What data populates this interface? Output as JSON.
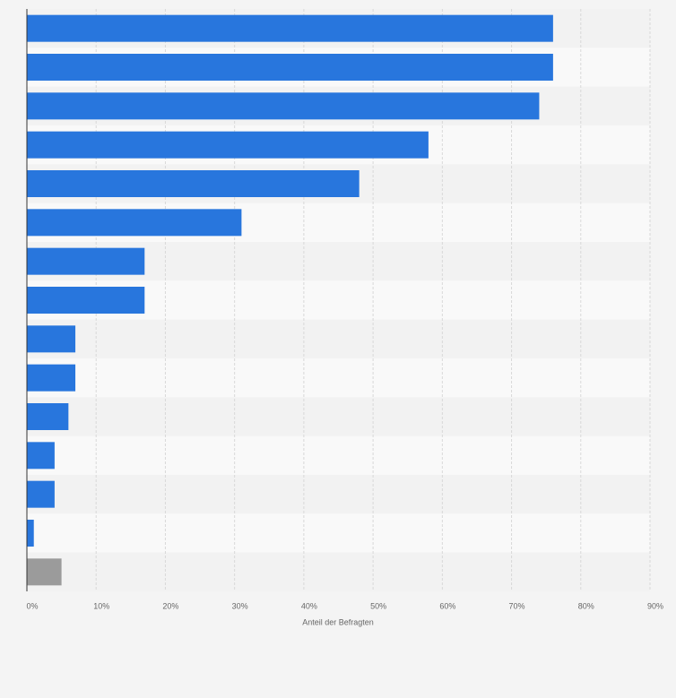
{
  "chart_data": {
    "type": "hbar",
    "categories": [
      null,
      null,
      null,
      null,
      null,
      null,
      null,
      null,
      null,
      null,
      null,
      null,
      null,
      null,
      null
    ],
    "values": [
      76,
      76,
      74,
      58,
      48,
      31,
      17,
      17,
      7,
      7,
      6,
      4,
      4,
      1,
      5
    ],
    "colors": [
      "#2876dd",
      "#2876dd",
      "#2876dd",
      "#2876dd",
      "#2876dd",
      "#2876dd",
      "#2876dd",
      "#2876dd",
      "#2876dd",
      "#2876dd",
      "#2876dd",
      "#2876dd",
      "#2876dd",
      "#2876dd",
      "#9b9b9b"
    ],
    "xlabel": "Anteil der Befragten",
    "xlim": [
      0,
      90
    ],
    "xticks": [
      {
        "value": 0,
        "label": "0%"
      },
      {
        "value": 10,
        "label": "10%"
      },
      {
        "value": 20,
        "label": "20%"
      },
      {
        "value": 30,
        "label": "30%"
      },
      {
        "value": 40,
        "label": "40%"
      },
      {
        "value": 50,
        "label": "50%"
      },
      {
        "value": 60,
        "label": "60%"
      },
      {
        "value": 70,
        "label": "70%"
      },
      {
        "value": 80,
        "label": "80%"
      },
      {
        "value": 90,
        "label": "90%"
      }
    ],
    "grid": true
  }
}
